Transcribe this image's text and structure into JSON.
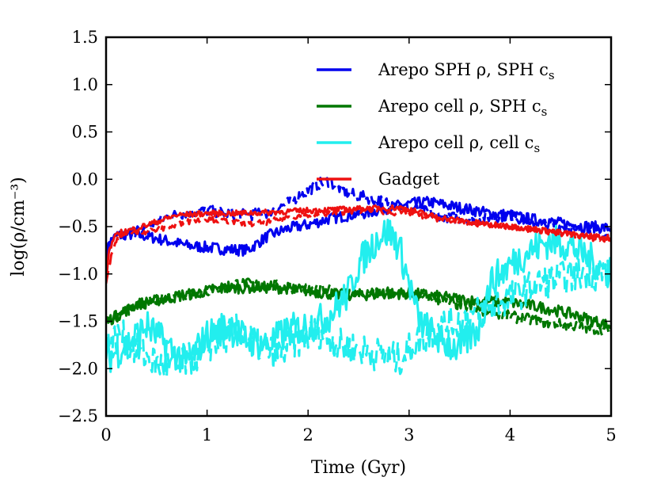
{
  "chart_data": {
    "type": "line",
    "title": "",
    "xlabel": "Time (Gyr)",
    "ylabel": "log(ρ/cm⁻³)",
    "xlim": [
      0,
      5
    ],
    "ylim": [
      -2.5,
      1.5
    ],
    "xticks": [
      0,
      1,
      2,
      3,
      4,
      5
    ],
    "xtick_labels": [
      "0",
      "1",
      "2",
      "3",
      "4",
      "5"
    ],
    "yticks": [
      -2.5,
      -2.0,
      -1.5,
      -1.0,
      -0.5,
      0.0,
      0.5,
      1.0,
      1.5
    ],
    "ytick_labels": [
      "−2.5",
      "−2.0",
      "−1.5",
      "−1.0",
      "−0.5",
      "0.0",
      "0.5",
      "1.0",
      "1.5"
    ],
    "legend_position": "top-right",
    "series": [
      {
        "name": "Arepo SPH ρ, SPH cs",
        "legend_main": "Arepo SPH ρ, SPH c",
        "legend_sub": "s",
        "color": "#0000ee",
        "runs": [
          {
            "style": "solid",
            "x": [
              0.0,
              0.05,
              0.1,
              0.2,
              0.4,
              0.6,
              0.8,
              1.0,
              1.2,
              1.4,
              1.6,
              1.8,
              2.0,
              2.2,
              2.4,
              2.6,
              2.8,
              3.0,
              3.2,
              3.4,
              3.6,
              3.8,
              4.0,
              4.2,
              4.4,
              4.6,
              4.8,
              5.0
            ],
            "y": [
              -0.85,
              -0.65,
              -0.6,
              -0.58,
              -0.6,
              -0.65,
              -0.7,
              -0.72,
              -0.74,
              -0.75,
              -0.6,
              -0.52,
              -0.48,
              -0.42,
              -0.38,
              -0.35,
              -0.3,
              -0.26,
              -0.24,
              -0.28,
              -0.32,
              -0.36,
              -0.38,
              -0.42,
              -0.45,
              -0.48,
              -0.5,
              -0.52
            ]
          },
          {
            "style": "dashed",
            "x": [
              0.0,
              0.1,
              0.2,
              0.4,
              0.6,
              0.8,
              1.0,
              1.2,
              1.4,
              1.6,
              1.8,
              2.0,
              2.1,
              2.2,
              2.4,
              2.6,
              2.8,
              3.0,
              3.2,
              3.4,
              3.6,
              3.8,
              4.0,
              4.2,
              4.4,
              4.6,
              4.8,
              5.0
            ],
            "y": [
              -0.75,
              -0.62,
              -0.58,
              -0.5,
              -0.4,
              -0.35,
              -0.33,
              -0.36,
              -0.38,
              -0.35,
              -0.25,
              -0.12,
              -0.05,
              -0.02,
              -0.15,
              -0.2,
              -0.25,
              -0.3,
              -0.35,
              -0.4,
              -0.42,
              -0.4,
              -0.38,
              -0.45,
              -0.48,
              -0.52,
              -0.56,
              -0.6
            ]
          }
        ]
      },
      {
        "name": "Arepo cell ρ, SPH cs",
        "legend_main": "Arepo cell ρ, SPH c",
        "legend_sub": "s",
        "color": "#007700",
        "runs": [
          {
            "style": "solid",
            "x": [
              0.0,
              0.1,
              0.3,
              0.5,
              0.8,
              1.0,
              1.2,
              1.5,
              1.8,
              2.0,
              2.3,
              2.6,
              3.0,
              3.3,
              3.6,
              4.0,
              4.3,
              4.6,
              5.0
            ],
            "y": [
              -1.5,
              -1.45,
              -1.32,
              -1.28,
              -1.22,
              -1.18,
              -1.15,
              -1.14,
              -1.15,
              -1.18,
              -1.22,
              -1.22,
              -1.2,
              -1.24,
              -1.28,
              -1.3,
              -1.35,
              -1.42,
              -1.55
            ]
          },
          {
            "style": "dashed",
            "x": [
              0.0,
              0.15,
              0.4,
              0.7,
              1.0,
              1.3,
              1.6,
              1.9,
              2.2,
              2.5,
              2.8,
              3.1,
              3.4,
              3.7,
              4.0,
              4.3,
              4.6,
              5.0
            ],
            "y": [
              -1.5,
              -1.42,
              -1.3,
              -1.22,
              -1.18,
              -1.1,
              -1.12,
              -1.15,
              -1.18,
              -1.22,
              -1.2,
              -1.24,
              -1.3,
              -1.38,
              -1.45,
              -1.5,
              -1.55,
              -1.6
            ]
          }
        ]
      },
      {
        "name": "Arepo cell ρ, cell cs",
        "legend_main": "Arepo cell ρ, cell c",
        "legend_sub": "s",
        "color": "#22eeee",
        "runs": [
          {
            "style": "solid",
            "x": [
              0.0,
              0.2,
              0.4,
              0.6,
              0.8,
              1.0,
              1.2,
              1.4,
              1.6,
              1.8,
              2.0,
              2.2,
              2.4,
              2.5,
              2.6,
              2.7,
              2.8,
              2.9,
              3.0,
              3.1,
              3.3,
              3.5,
              3.7,
              3.8,
              4.0,
              4.2,
              4.4,
              4.6,
              4.8,
              5.0
            ],
            "y": [
              -1.9,
              -1.75,
              -1.55,
              -1.75,
              -1.95,
              -1.65,
              -1.55,
              -1.7,
              -1.75,
              -1.6,
              -1.55,
              -1.45,
              -1.2,
              -0.9,
              -0.75,
              -0.6,
              -0.55,
              -0.7,
              -1.1,
              -1.5,
              -1.7,
              -1.8,
              -1.55,
              -1.1,
              -0.9,
              -0.75,
              -0.65,
              -0.7,
              -0.85,
              -1.0
            ]
          },
          {
            "style": "dashed",
            "x": [
              0.0,
              0.15,
              0.3,
              0.5,
              0.7,
              0.9,
              1.1,
              1.3,
              1.5,
              1.7,
              1.9,
              2.1,
              2.3,
              2.5,
              2.7,
              2.9,
              3.1,
              3.3,
              3.5,
              3.7,
              3.9,
              4.1,
              4.3,
              4.5,
              4.7,
              5.0
            ],
            "y": [
              -1.75,
              -1.65,
              -1.8,
              -1.95,
              -2.0,
              -1.85,
              -1.7,
              -1.6,
              -1.75,
              -1.85,
              -1.7,
              -1.6,
              -1.75,
              -1.8,
              -1.85,
              -1.9,
              -1.7,
              -1.55,
              -1.5,
              -1.4,
              -1.3,
              -1.2,
              -1.1,
              -1.05,
              -1.0,
              -1.0
            ]
          }
        ]
      },
      {
        "name": "Gadget",
        "legend_main": "Gadget",
        "legend_sub": "",
        "color": "#ee1111",
        "runs": [
          {
            "style": "solid",
            "x": [
              0.0,
              0.03,
              0.08,
              0.15,
              0.3,
              0.5,
              0.7,
              1.0,
              1.3,
              1.6,
              2.0,
              2.3,
              2.6,
              2.9,
              3.0,
              3.2,
              3.4,
              3.6,
              3.8,
              4.0,
              4.2,
              4.4,
              4.6,
              4.8,
              5.0
            ],
            "y": [
              -1.05,
              -0.75,
              -0.62,
              -0.56,
              -0.52,
              -0.45,
              -0.38,
              -0.36,
              -0.36,
              -0.35,
              -0.33,
              -0.32,
              -0.31,
              -0.3,
              -0.32,
              -0.38,
              -0.42,
              -0.45,
              -0.48,
              -0.5,
              -0.52,
              -0.55,
              -0.58,
              -0.6,
              -0.62
            ]
          },
          {
            "style": "dashed",
            "x": [
              0.0,
              0.05,
              0.1,
              0.2,
              0.4,
              0.6,
              0.8,
              1.0,
              1.2,
              1.4,
              1.6,
              1.8,
              2.0,
              2.2,
              2.4,
              2.6,
              2.8,
              3.0,
              3.2,
              3.4,
              3.6,
              3.8,
              4.0,
              4.2,
              4.4,
              4.6,
              4.8,
              5.0
            ],
            "y": [
              -1.1,
              -0.8,
              -0.65,
              -0.58,
              -0.55,
              -0.52,
              -0.45,
              -0.42,
              -0.44,
              -0.48,
              -0.45,
              -0.4,
              -0.38,
              -0.36,
              -0.34,
              -0.32,
              -0.35,
              -0.36,
              -0.4,
              -0.44,
              -0.46,
              -0.48,
              -0.5,
              -0.53,
              -0.56,
              -0.58,
              -0.62,
              -0.65
            ]
          }
        ]
      }
    ]
  }
}
